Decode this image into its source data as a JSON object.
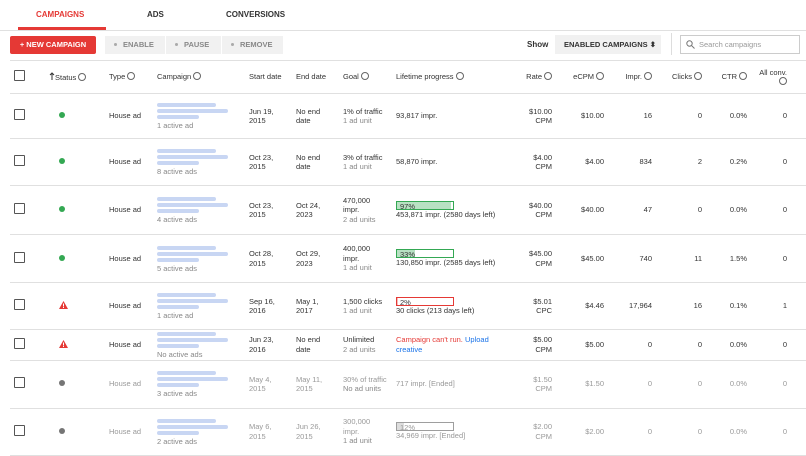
{
  "tabs": [
    "CAMPAIGNS",
    "ADS",
    "CONVERSIONS"
  ],
  "toolbar": {
    "new_button": "+ NEW CAMPAIGN",
    "enable": "ENABLE",
    "pause": "PAUSE",
    "remove": "REMOVE",
    "show_label": "Show",
    "show_value": "ENABLED CAMPAIGNS",
    "search_placeholder": "Search campaigns"
  },
  "table": {
    "headers": [
      {
        "text": "Status",
        "help": true
      },
      {
        "text": "Type",
        "help": true
      },
      {
        "text": "Campaign",
        "help": true
      },
      {
        "text": "Start date",
        "help": false
      },
      {
        "text": "End date",
        "help": false
      },
      {
        "text": "Goal",
        "help": true
      },
      {
        "text": "Lifetime progress",
        "help": true
      },
      {
        "text": "Rate",
        "help": true
      },
      {
        "text": "eCPM",
        "help": true
      },
      {
        "text": "Impr.",
        "help": true
      },
      {
        "text": "Clicks",
        "help": true
      },
      {
        "text": "CTR",
        "help": true
      },
      {
        "text": "All conv.",
        "help": true
      }
    ],
    "rows": [
      {
        "status": "active",
        "type": "House ad",
        "ads": "1 active ad",
        "start": "Jun 19, 2015",
        "end": "No end date",
        "goal": "1% of traffic",
        "goal_sub": "1 ad unit",
        "progress_text": "93,817 impr.",
        "rate": "$10.00 CPM",
        "ecpm": "$10.00",
        "impr": "16",
        "clicks": "0",
        "ctr": "0.0%",
        "conv": "0"
      },
      {
        "status": "active",
        "type": "House ad",
        "ads": "8 active ads",
        "start": "Oct 23, 2015",
        "end": "No end date",
        "goal": "3% of traffic",
        "goal_sub": "1 ad unit",
        "progress_text": "58,870 impr.",
        "rate": "$4.00 CPM",
        "ecpm": "$4.00",
        "impr": "834",
        "clicks": "2",
        "ctr": "0.2%",
        "conv": "0"
      },
      {
        "status": "active",
        "type": "House ad",
        "ads": "4 active ads",
        "start": "Oct 23, 2015",
        "end": "Oct 24, 2023",
        "goal": "470,000 impr.",
        "goal_sub": "2 ad units",
        "progress": {
          "value": 97,
          "label": "97%"
        },
        "bar_color": "#34a853",
        "progress_text": "453,871 impr. (2580 days left)",
        "rate": "$40.00 CPM",
        "ecpm": "$40.00",
        "impr": "47",
        "clicks": "0",
        "ctr": "0.0%",
        "conv": "0"
      },
      {
        "status": "active",
        "type": "House ad",
        "ads": "5 active ads",
        "start": "Oct 28, 2015",
        "end": "Oct 29, 2023",
        "goal": "400,000 impr.",
        "goal_sub": "1 ad unit",
        "progress": {
          "value": 33,
          "label": "33%"
        },
        "bar_color": "#34a853",
        "progress_text": "130,850 impr. (2585 days left)",
        "rate": "$45.00 CPM",
        "ecpm": "$45.00",
        "impr": "740",
        "clicks": "11",
        "ctr": "1.5%",
        "conv": "0"
      },
      {
        "status": "warning",
        "type": "House ad",
        "ads": "1 active ad",
        "start": "Sep 16, 2016",
        "end": "May 1, 2017",
        "goal": "1,500 clicks",
        "goal_sub": "1 ad unit",
        "progress": {
          "value": 2,
          "label": "2%"
        },
        "bar_color": "#e53935",
        "progress_text": "30 clicks (213 days left)",
        "rate": "$5.01 CPC",
        "ecpm": "$4.46",
        "impr": "17,964",
        "clicks": "16",
        "ctr": "0.1%",
        "conv": "1"
      },
      {
        "status": "warning",
        "type": "House ad",
        "ads": "No active ads",
        "start": "Jun 23, 2016",
        "end": "No end date",
        "goal": "Unlimited",
        "goal_sub": "2 ad units",
        "progress_error": "Campaign can't run.",
        "progress_link": "Upload creative",
        "rate": "$5.00 CPM",
        "ecpm": "$5.00",
        "impr": "0",
        "clicks": "0",
        "ctr": "0.0%",
        "conv": "0"
      },
      {
        "status": "ended",
        "type": "House ad",
        "ads": "3 active ads",
        "start": "May 4, 2015",
        "end": "May 11, 2015",
        "goal": "30% of traffic",
        "goal_sub": "No ad units",
        "progress_text": "717 impr. [Ended]",
        "rate": "$1.50 CPM",
        "ecpm": "$1.50",
        "impr": "0",
        "clicks": "0",
        "ctr": "0.0%",
        "conv": "0"
      },
      {
        "status": "ended",
        "type": "House ad",
        "ads": "2 active ads",
        "start": "May 6, 2015",
        "end": "Jun 26, 2015",
        "goal": "300,000 impr.",
        "goal_sub": "1 ad unit",
        "progress": {
          "value": 12,
          "label": "12%"
        },
        "bar_color": "#9e9e9e",
        "progress_text": "34,969 impr. [Ended]",
        "rate": "$2.00 CPM",
        "ecpm": "$2.00",
        "impr": "0",
        "clicks": "0",
        "ctr": "0.0%",
        "conv": "0"
      }
    ]
  }
}
